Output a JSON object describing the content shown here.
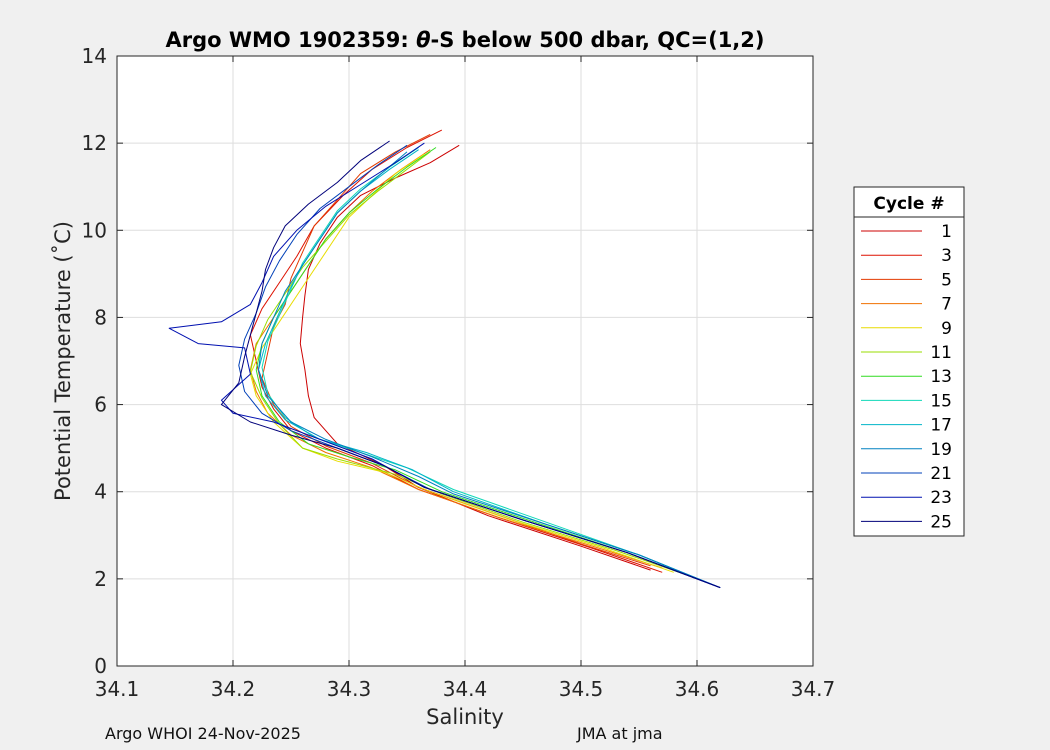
{
  "chart_data": {
    "type": "line",
    "title": "Argo WMO 1902359: θ-S below 500 dbar,  QC=(1,2)",
    "title_parts": [
      "Argo WMO 1902359: ",
      "θ",
      "-S below 500 dbar,  QC=(1,2)"
    ],
    "xlabel": "Salinity",
    "ylabel": "Potential Temperature (˚C)",
    "xlim": [
      34.1,
      34.7
    ],
    "ylim": [
      0,
      14
    ],
    "xticks": [
      34.1,
      34.2,
      34.3,
      34.4,
      34.5,
      34.6,
      34.7
    ],
    "xtick_labels": [
      "34.1",
      "34.2",
      "34.3",
      "34.4",
      "34.5",
      "34.6",
      "34.7"
    ],
    "yticks": [
      0,
      2,
      4,
      6,
      8,
      10,
      12,
      14
    ],
    "ytick_labels": [
      "0",
      "2",
      "4",
      "6",
      "8",
      "10",
      "12",
      "14"
    ],
    "grid": true,
    "legend": {
      "title": "Cycle #",
      "position": "right"
    },
    "series": [
      {
        "name": "1",
        "color": "#cc0000",
        "points": [
          [
            34.395,
            11.95
          ],
          [
            34.37,
            11.55
          ],
          [
            34.34,
            11.2
          ],
          [
            34.31,
            10.8
          ],
          [
            34.29,
            10.3
          ],
          [
            34.275,
            9.7
          ],
          [
            34.265,
            9.1
          ],
          [
            34.262,
            8.5
          ],
          [
            34.26,
            8.0
          ],
          [
            34.258,
            7.4
          ],
          [
            34.262,
            6.8
          ],
          [
            34.265,
            6.2
          ],
          [
            34.27,
            5.7
          ],
          [
            34.29,
            5.1
          ],
          [
            34.33,
            4.6
          ],
          [
            34.36,
            4.1
          ],
          [
            34.42,
            3.45
          ],
          [
            34.5,
            2.75
          ],
          [
            34.56,
            2.2
          ]
        ]
      },
      {
        "name": "3",
        "color": "#dd1100",
        "points": [
          [
            34.38,
            12.3
          ],
          [
            34.35,
            11.9
          ],
          [
            34.32,
            11.4
          ],
          [
            34.295,
            10.8
          ],
          [
            34.27,
            10.1
          ],
          [
            34.255,
            9.4
          ],
          [
            34.24,
            8.8
          ],
          [
            34.225,
            8.2
          ],
          [
            34.215,
            7.6
          ],
          [
            34.22,
            7.0
          ],
          [
            34.225,
            6.4
          ],
          [
            34.235,
            5.9
          ],
          [
            34.25,
            5.4
          ],
          [
            34.28,
            5.0
          ],
          [
            34.32,
            4.6
          ],
          [
            34.36,
            4.05
          ],
          [
            34.43,
            3.4
          ],
          [
            34.51,
            2.7
          ],
          [
            34.57,
            2.15
          ]
        ]
      },
      {
        "name": "5",
        "color": "#e23a00",
        "points": [
          [
            34.37,
            12.2
          ],
          [
            34.34,
            11.8
          ],
          [
            34.31,
            11.3
          ],
          [
            34.29,
            10.7
          ],
          [
            34.27,
            10.1
          ],
          [
            34.26,
            9.5
          ],
          [
            34.25,
            8.9
          ],
          [
            34.245,
            8.3
          ],
          [
            34.235,
            7.8
          ],
          [
            34.23,
            7.2
          ],
          [
            34.225,
            6.6
          ],
          [
            34.235,
            6.0
          ],
          [
            34.25,
            5.5
          ],
          [
            34.28,
            5.05
          ],
          [
            34.32,
            4.65
          ],
          [
            34.36,
            4.1
          ],
          [
            34.43,
            3.45
          ],
          [
            34.5,
            2.8
          ],
          [
            34.56,
            2.3
          ]
        ]
      },
      {
        "name": "7",
        "color": "#f07000",
        "points": [
          [
            34.37,
            11.85
          ],
          [
            34.345,
            11.4
          ],
          [
            34.32,
            10.9
          ],
          [
            34.3,
            10.4
          ],
          [
            34.28,
            9.8
          ],
          [
            34.265,
            9.2
          ],
          [
            34.25,
            8.6
          ],
          [
            34.235,
            8.0
          ],
          [
            34.22,
            7.4
          ],
          [
            34.215,
            6.8
          ],
          [
            34.22,
            6.3
          ],
          [
            34.23,
            5.8
          ],
          [
            34.25,
            5.3
          ],
          [
            34.28,
            4.9
          ],
          [
            34.32,
            4.55
          ],
          [
            34.36,
            4.05
          ],
          [
            34.43,
            3.4
          ],
          [
            34.51,
            2.75
          ],
          [
            34.57,
            2.25
          ]
        ]
      },
      {
        "name": "9",
        "color": "#e8dc00",
        "points": [
          [
            34.365,
            11.75
          ],
          [
            34.34,
            11.3
          ],
          [
            34.32,
            10.8
          ],
          [
            34.3,
            10.3
          ],
          [
            34.285,
            9.7
          ],
          [
            34.27,
            9.1
          ],
          [
            34.255,
            8.5
          ],
          [
            34.24,
            7.9
          ],
          [
            34.225,
            7.3
          ],
          [
            34.215,
            6.7
          ],
          [
            34.22,
            6.2
          ],
          [
            34.235,
            5.6
          ],
          [
            34.26,
            5.0
          ],
          [
            34.29,
            4.7
          ],
          [
            34.33,
            4.45
          ],
          [
            34.37,
            4.0
          ],
          [
            34.44,
            3.35
          ],
          [
            34.52,
            2.7
          ],
          [
            34.58,
            2.15
          ]
        ]
      },
      {
        "name": "11",
        "color": "#9ade00",
        "points": [
          [
            34.37,
            11.8
          ],
          [
            34.35,
            11.4
          ],
          [
            34.325,
            10.9
          ],
          [
            34.3,
            10.35
          ],
          [
            34.28,
            9.75
          ],
          [
            34.26,
            9.15
          ],
          [
            34.245,
            8.55
          ],
          [
            34.23,
            7.95
          ],
          [
            34.22,
            7.35
          ],
          [
            34.215,
            6.75
          ],
          [
            34.225,
            6.15
          ],
          [
            34.24,
            5.55
          ],
          [
            34.26,
            5.0
          ],
          [
            34.29,
            4.75
          ],
          [
            34.34,
            4.4
          ],
          [
            34.38,
            3.95
          ],
          [
            34.45,
            3.3
          ],
          [
            34.53,
            2.65
          ],
          [
            34.59,
            2.1
          ]
        ]
      },
      {
        "name": "13",
        "color": "#30dc20",
        "points": [
          [
            34.375,
            11.9
          ],
          [
            34.35,
            11.45
          ],
          [
            34.325,
            10.95
          ],
          [
            34.3,
            10.4
          ],
          [
            34.28,
            9.8
          ],
          [
            34.265,
            9.2
          ],
          [
            34.25,
            8.6
          ],
          [
            34.235,
            8.0
          ],
          [
            34.225,
            7.4
          ],
          [
            34.22,
            6.8
          ],
          [
            34.225,
            6.2
          ],
          [
            34.24,
            5.6
          ],
          [
            34.265,
            5.1
          ],
          [
            34.3,
            4.8
          ],
          [
            34.34,
            4.5
          ],
          [
            34.38,
            4.0
          ],
          [
            34.46,
            3.3
          ],
          [
            34.54,
            2.6
          ],
          [
            34.6,
            2.0
          ]
        ]
      },
      {
        "name": "15",
        "color": "#10d8b8",
        "points": [
          [
            34.36,
            11.9
          ],
          [
            34.335,
            11.45
          ],
          [
            34.31,
            10.95
          ],
          [
            34.29,
            10.45
          ],
          [
            34.275,
            9.85
          ],
          [
            34.26,
            9.25
          ],
          [
            34.25,
            8.65
          ],
          [
            34.24,
            8.05
          ],
          [
            34.23,
            7.45
          ],
          [
            34.225,
            6.85
          ],
          [
            34.23,
            6.25
          ],
          [
            34.245,
            5.7
          ],
          [
            34.27,
            5.25
          ],
          [
            34.31,
            4.9
          ],
          [
            34.35,
            4.55
          ],
          [
            34.39,
            4.05
          ],
          [
            34.47,
            3.3
          ],
          [
            34.55,
            2.55
          ],
          [
            34.61,
            1.9
          ]
        ]
      },
      {
        "name": "17",
        "color": "#00b4c8",
        "points": [
          [
            34.36,
            11.85
          ],
          [
            34.335,
            11.4
          ],
          [
            34.31,
            10.9
          ],
          [
            34.29,
            10.4
          ],
          [
            34.275,
            9.8
          ],
          [
            34.26,
            9.2
          ],
          [
            34.248,
            8.6
          ],
          [
            34.238,
            8.0
          ],
          [
            34.228,
            7.4
          ],
          [
            34.222,
            6.8
          ],
          [
            34.228,
            6.2
          ],
          [
            34.245,
            5.65
          ],
          [
            34.275,
            5.2
          ],
          [
            34.315,
            4.9
          ],
          [
            34.355,
            4.5
          ],
          [
            34.39,
            4.0
          ],
          [
            34.47,
            3.25
          ],
          [
            34.55,
            2.55
          ],
          [
            34.615,
            1.85
          ]
        ]
      },
      {
        "name": "19",
        "color": "#0080c0",
        "points": [
          [
            34.35,
            11.8
          ],
          [
            34.33,
            11.35
          ],
          [
            34.31,
            10.9
          ],
          [
            34.29,
            10.4
          ],
          [
            34.275,
            9.8
          ],
          [
            34.26,
            9.2
          ],
          [
            34.245,
            8.6
          ],
          [
            34.235,
            8.0
          ],
          [
            34.225,
            7.4
          ],
          [
            34.222,
            6.8
          ],
          [
            34.23,
            6.2
          ],
          [
            34.25,
            5.6
          ],
          [
            34.28,
            5.2
          ],
          [
            34.32,
            4.8
          ],
          [
            34.36,
            4.35
          ],
          [
            34.39,
            3.95
          ],
          [
            34.47,
            3.25
          ],
          [
            34.55,
            2.55
          ],
          [
            34.62,
            1.8
          ]
        ]
      },
      {
        "name": "21",
        "color": "#0040b8",
        "points": [
          [
            34.35,
            11.95
          ],
          [
            34.325,
            11.5
          ],
          [
            34.3,
            11.0
          ],
          [
            34.275,
            10.5
          ],
          [
            34.255,
            9.9
          ],
          [
            34.24,
            9.3
          ],
          [
            34.228,
            8.7
          ],
          [
            34.22,
            8.1
          ],
          [
            34.21,
            7.5
          ],
          [
            34.205,
            6.9
          ],
          [
            34.21,
            6.3
          ],
          [
            34.225,
            5.8
          ],
          [
            34.25,
            5.4
          ],
          [
            34.29,
            5.0
          ],
          [
            34.33,
            4.6
          ],
          [
            34.37,
            4.05
          ],
          [
            34.45,
            3.35
          ],
          [
            34.54,
            2.6
          ],
          [
            34.62,
            1.8
          ]
        ]
      },
      {
        "name": "23",
        "color": "#0010b0",
        "points": [
          [
            34.365,
            12.0
          ],
          [
            34.34,
            11.55
          ],
          [
            34.31,
            11.05
          ],
          [
            34.28,
            10.55
          ],
          [
            34.255,
            10.0
          ],
          [
            34.235,
            9.4
          ],
          [
            34.225,
            8.8
          ],
          [
            34.215,
            8.3
          ],
          [
            34.19,
            7.9
          ],
          [
            34.145,
            7.75
          ],
          [
            34.17,
            7.4
          ],
          [
            34.21,
            7.3
          ],
          [
            34.215,
            6.7
          ],
          [
            34.19,
            6.1
          ],
          [
            34.2,
            5.8
          ],
          [
            34.235,
            5.6
          ],
          [
            34.275,
            5.2
          ],
          [
            34.32,
            4.75
          ],
          [
            34.365,
            4.1
          ],
          [
            34.45,
            3.35
          ],
          [
            34.54,
            2.6
          ],
          [
            34.62,
            1.8
          ]
        ]
      },
      {
        "name": "25",
        "color": "#00007a",
        "points": [
          [
            34.335,
            12.05
          ],
          [
            34.31,
            11.6
          ],
          [
            34.29,
            11.1
          ],
          [
            34.265,
            10.6
          ],
          [
            34.245,
            10.1
          ],
          [
            34.235,
            9.6
          ],
          [
            34.228,
            9.1
          ],
          [
            34.225,
            8.6
          ],
          [
            34.22,
            8.1
          ],
          [
            34.215,
            7.6
          ],
          [
            34.21,
            7.1
          ],
          [
            34.205,
            6.5
          ],
          [
            34.19,
            6.0
          ],
          [
            34.215,
            5.6
          ],
          [
            34.25,
            5.3
          ],
          [
            34.29,
            5.0
          ],
          [
            34.33,
            4.6
          ],
          [
            34.365,
            4.1
          ],
          [
            34.45,
            3.35
          ],
          [
            34.54,
            2.6
          ],
          [
            34.62,
            1.8
          ]
        ]
      }
    ]
  },
  "footer": {
    "left": "Argo WHOI 24-Nov-2025",
    "right": "JMA at jma"
  }
}
